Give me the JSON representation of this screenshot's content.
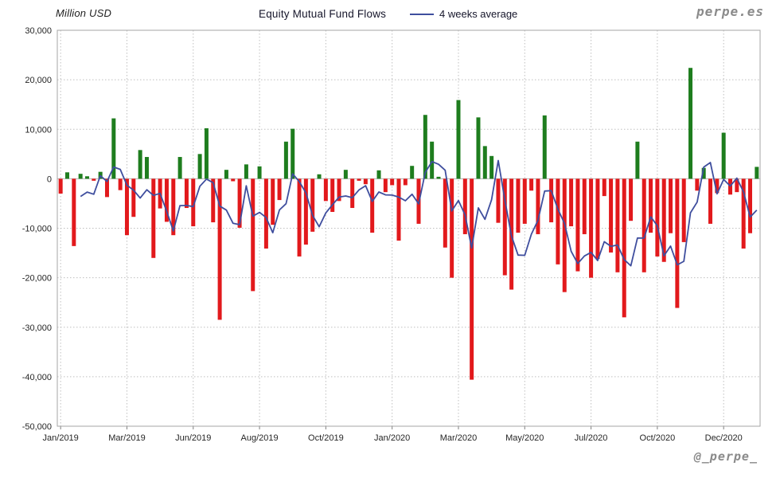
{
  "header": {
    "unit_label": "Million USD",
    "title": "Equity Mutual Fund Flows",
    "legend_label": "4 weeks average",
    "logo": "perpe.es"
  },
  "footer": {
    "handle": "@_perpe_"
  },
  "chart_data": {
    "type": "bar",
    "title": "Equity Mutual Fund Flows",
    "unit": "Million USD",
    "x_unit": "week",
    "ylim": [
      -50000,
      30000
    ],
    "grid": "dotted",
    "y_ticks": [
      30000,
      20000,
      10000,
      0,
      -10000,
      -20000,
      -30000,
      -40000,
      -50000
    ],
    "y_tick_labels": [
      "30,000",
      "20,000",
      "10,000",
      "0",
      "-10,000",
      "-20,000",
      "-30,000",
      "-40,000",
      "-50,000"
    ],
    "x_tick_labels": [
      "Jan/2019",
      "Mar/2019",
      "Jun/2019",
      "Aug/2019",
      "Oct/2019",
      "Jan/2020",
      "Mar/2020",
      "May/2020",
      "Jul/2020",
      "Oct/2020",
      "Dec/2020"
    ],
    "x_tick_indices": [
      0,
      10,
      20,
      30,
      40,
      50,
      60,
      70,
      80,
      90,
      100
    ],
    "legend": [
      {
        "name": "4 weeks average",
        "type": "line",
        "color": "#3f4e9e",
        "derived": "trailing 4-week moving average of weekly values"
      }
    ],
    "series": [
      {
        "name": "Weekly equity mutual fund flows (Million USD)",
        "type": "bar",
        "values": [
          -3000,
          1300,
          -13600,
          1000,
          500,
          -400,
          1400,
          -3700,
          12200,
          -2300,
          -11400,
          -7700,
          5800,
          4400,
          -16000,
          -6000,
          -8700,
          -11400,
          4400,
          -5900,
          -9600,
          5000,
          10200,
          -8800,
          -28500,
          1800,
          -500,
          -9900,
          2900,
          -22700,
          2500,
          -14100,
          -9300,
          -4300,
          7500,
          10100,
          -15700,
          -13300,
          -10700,
          900,
          -4500,
          -6700,
          -4500,
          1800,
          -5900,
          -400,
          -1100,
          -10900,
          1700,
          -2700,
          -1300,
          -12500,
          -1300,
          2600,
          -9100,
          12900,
          7500,
          400,
          -13900,
          -20000,
          15900,
          -11200,
          -40600,
          12400,
          6600,
          4600,
          -8900,
          -19500,
          -22400,
          -10900,
          -9100,
          -2400,
          -11200,
          12800,
          -8800,
          -17300,
          -22900,
          -9600,
          -18700,
          -11200,
          -20000,
          -16200,
          -3500,
          -14900,
          -18900,
          -28000,
          -8500,
          7500,
          -18900,
          -10900,
          -15700,
          -16800,
          -11000,
          -26100,
          -12800,
          22400,
          -2400,
          2200,
          -9100,
          -2900,
          9300,
          -3200,
          -2700,
          -14100,
          -11000,
          2400
        ]
      }
    ],
    "colors": {
      "positive_bar": "#1e7d1e",
      "negative_bar": "#e2191c",
      "average_line": "#3f4e9e",
      "grid": "#bfbfbf",
      "border": "#a6a6a6",
      "zero_line": "#b3b3b3",
      "axis_text": "#262626"
    }
  }
}
